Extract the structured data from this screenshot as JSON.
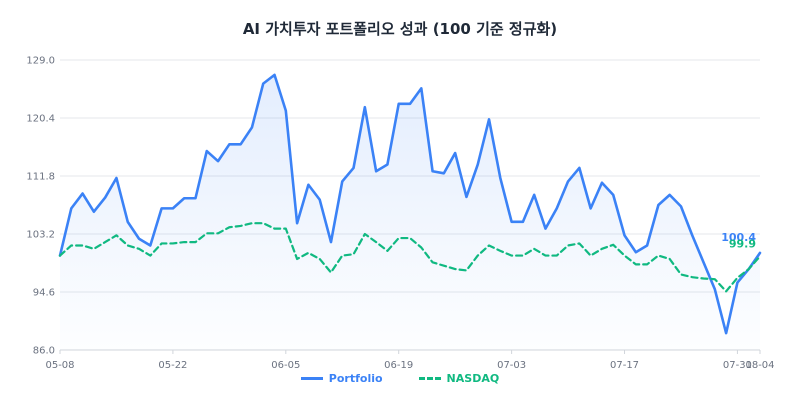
{
  "chart_data": {
    "type": "line",
    "title": "AI 가치투자 포트폴리오 성과 (100 기준 정규화)",
    "xlabel": "",
    "ylabel": "",
    "ylim": [
      86.0,
      129.0
    ],
    "y_ticks": [
      "86.0",
      "94.6",
      "103.2",
      "111.8",
      "120.4",
      "129.0"
    ],
    "x_ticks": [
      {
        "label": "05-08",
        "index": 0
      },
      {
        "label": "05-22",
        "index": 10
      },
      {
        "label": "06-05",
        "index": 20
      },
      {
        "label": "06-19",
        "index": 30
      },
      {
        "label": "07-03",
        "index": 40
      },
      {
        "label": "07-17",
        "index": 50
      },
      {
        "label": "07-31",
        "index": 60
      },
      {
        "label": "08-04",
        "index": 62
      }
    ],
    "grid": true,
    "legend_position": "bottom",
    "series": [
      {
        "name": "Portfolio",
        "color": "#3b82f6",
        "style": "solid",
        "end_label": "100.4",
        "values": [
          100.0,
          107.0,
          109.2,
          106.5,
          108.6,
          111.5,
          105.0,
          102.5,
          101.5,
          107.0,
          107.0,
          108.5,
          108.5,
          115.5,
          114.0,
          116.5,
          116.5,
          119.0,
          125.5,
          126.8,
          121.5,
          104.8,
          110.5,
          108.3,
          102.0,
          111.0,
          113.0,
          122.0,
          112.5,
          113.5,
          122.5,
          122.5,
          124.8,
          112.5,
          112.2,
          115.2,
          108.7,
          113.5,
          120.2,
          111.5,
          105.0,
          105.0,
          109.0,
          104.0,
          107.0,
          111.0,
          113.0,
          107.0,
          110.8,
          109.0,
          103.0,
          100.5,
          101.5,
          107.5,
          109.0,
          107.3,
          103.0,
          99.0,
          95.0,
          88.5,
          96.0,
          98.0,
          100.4
        ]
      },
      {
        "name": "NASDAQ",
        "color": "#10b981",
        "style": "dashed",
        "end_label": "99.9",
        "values": [
          100.0,
          101.5,
          101.5,
          101.0,
          102.0,
          103.0,
          101.5,
          101.0,
          100.0,
          101.8,
          101.8,
          102.0,
          102.0,
          103.3,
          103.3,
          104.2,
          104.4,
          104.8,
          104.8,
          104.0,
          104.0,
          99.5,
          100.4,
          99.5,
          97.5,
          100.0,
          100.2,
          103.2,
          102.0,
          100.7,
          102.6,
          102.6,
          101.2,
          99.0,
          98.5,
          98.0,
          97.8,
          100.0,
          101.5,
          100.7,
          100.0,
          100.0,
          101.0,
          100.0,
          100.0,
          101.5,
          101.8,
          100.0,
          101.0,
          101.6,
          100.0,
          98.7,
          98.7,
          100.0,
          99.5,
          97.2,
          96.8,
          96.6,
          96.5,
          94.7,
          96.7,
          98.0,
          99.9
        ]
      }
    ]
  }
}
